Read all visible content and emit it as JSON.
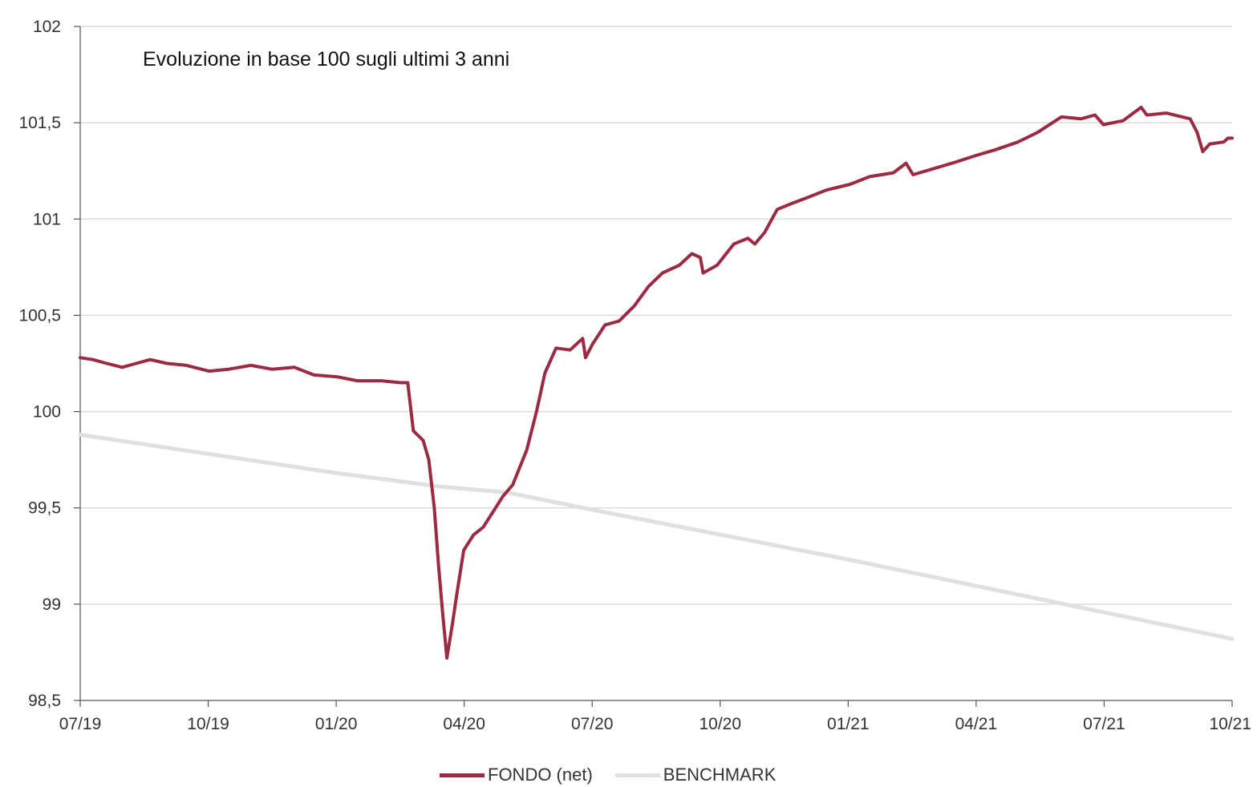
{
  "chart_data": {
    "type": "line",
    "title": "Evoluzione in base 100 sugli ultimi 3 anni",
    "xlabel": "",
    "ylabel": "",
    "x_ticks": [
      "07/19",
      "10/19",
      "01/20",
      "04/20",
      "07/20",
      "10/20",
      "01/21",
      "04/21",
      "07/21",
      "10/21"
    ],
    "y_ticks": [
      "98,5",
      "99",
      "99,5",
      "100",
      "100,5",
      "101",
      "101,5",
      "102"
    ],
    "ylim": [
      98.5,
      102
    ],
    "xlim": [
      "2019-07-01",
      "2021-10-01"
    ],
    "grid": "horizontal",
    "legend_position": "bottom",
    "series": [
      {
        "name": "FONDO (net)",
        "color": "#9b2a43",
        "points": [
          [
            "2019-07-01",
            100.28
          ],
          [
            "2019-07-10",
            100.27
          ],
          [
            "2019-07-20",
            100.25
          ],
          [
            "2019-07-31",
            100.23
          ],
          [
            "2019-08-10",
            100.25
          ],
          [
            "2019-08-20",
            100.27
          ],
          [
            "2019-09-01",
            100.25
          ],
          [
            "2019-09-15",
            100.24
          ],
          [
            "2019-10-01",
            100.21
          ],
          [
            "2019-10-15",
            100.22
          ],
          [
            "2019-10-31",
            100.24
          ],
          [
            "2019-11-15",
            100.22
          ],
          [
            "2019-12-01",
            100.23
          ],
          [
            "2019-12-15",
            100.19
          ],
          [
            "2020-01-01",
            100.18
          ],
          [
            "2020-01-15",
            100.16
          ],
          [
            "2020-02-01",
            100.16
          ],
          [
            "2020-02-15",
            100.15
          ],
          [
            "2020-02-20",
            100.15
          ],
          [
            "2020-02-24",
            99.9
          ],
          [
            "2020-03-02",
            99.85
          ],
          [
            "2020-03-06",
            99.75
          ],
          [
            "2020-03-10",
            99.5
          ],
          [
            "2020-03-13",
            99.2
          ],
          [
            "2020-03-16",
            98.95
          ],
          [
            "2020-03-19",
            98.72
          ],
          [
            "2020-03-23",
            98.9
          ],
          [
            "2020-03-26",
            99.05
          ],
          [
            "2020-03-31",
            99.28
          ],
          [
            "2020-04-07",
            99.36
          ],
          [
            "2020-04-14",
            99.4
          ],
          [
            "2020-04-21",
            99.48
          ],
          [
            "2020-04-28",
            99.56
          ],
          [
            "2020-05-05",
            99.62
          ],
          [
            "2020-05-15",
            99.8
          ],
          [
            "2020-05-22",
            100.0
          ],
          [
            "2020-05-28",
            100.2
          ],
          [
            "2020-06-05",
            100.33
          ],
          [
            "2020-06-15",
            100.32
          ],
          [
            "2020-06-24",
            100.38
          ],
          [
            "2020-06-26",
            100.28
          ],
          [
            "2020-07-01",
            100.35
          ],
          [
            "2020-07-10",
            100.45
          ],
          [
            "2020-07-20",
            100.47
          ],
          [
            "2020-07-31",
            100.55
          ],
          [
            "2020-08-10",
            100.65
          ],
          [
            "2020-08-20",
            100.72
          ],
          [
            "2020-09-01",
            100.76
          ],
          [
            "2020-09-10",
            100.82
          ],
          [
            "2020-09-16",
            100.8
          ],
          [
            "2020-09-18",
            100.72
          ],
          [
            "2020-09-28",
            100.76
          ],
          [
            "2020-10-10",
            100.87
          ],
          [
            "2020-10-20",
            100.9
          ],
          [
            "2020-10-25",
            100.87
          ],
          [
            "2020-11-01",
            100.93
          ],
          [
            "2020-11-10",
            101.05
          ],
          [
            "2020-11-20",
            101.08
          ],
          [
            "2020-12-01",
            101.11
          ],
          [
            "2020-12-15",
            101.15
          ],
          [
            "2021-01-01",
            101.18
          ],
          [
            "2021-01-15",
            101.22
          ],
          [
            "2021-02-01",
            101.24
          ],
          [
            "2021-02-10",
            101.29
          ],
          [
            "2021-02-15",
            101.23
          ],
          [
            "2021-03-01",
            101.26
          ],
          [
            "2021-03-15",
            101.29
          ],
          [
            "2021-04-01",
            101.33
          ],
          [
            "2021-04-15",
            101.36
          ],
          [
            "2021-05-01",
            101.4
          ],
          [
            "2021-05-15",
            101.45
          ],
          [
            "2021-06-01",
            101.53
          ],
          [
            "2021-06-15",
            101.52
          ],
          [
            "2021-06-25",
            101.54
          ],
          [
            "2021-07-01",
            101.49
          ],
          [
            "2021-07-15",
            101.51
          ],
          [
            "2021-07-28",
            101.58
          ],
          [
            "2021-08-01",
            101.54
          ],
          [
            "2021-08-15",
            101.55
          ],
          [
            "2021-09-01",
            101.52
          ],
          [
            "2021-09-06",
            101.45
          ],
          [
            "2021-09-10",
            101.35
          ],
          [
            "2021-09-15",
            101.39
          ],
          [
            "2021-09-25",
            101.4
          ],
          [
            "2021-09-28",
            101.42
          ],
          [
            "2021-10-01",
            101.42
          ]
        ]
      },
      {
        "name": "BENCHMARK",
        "color": "#e0e0e0",
        "points": [
          [
            "2019-07-01",
            99.88
          ],
          [
            "2020-01-01",
            99.68
          ],
          [
            "2020-03-15",
            99.61
          ],
          [
            "2020-05-01",
            99.58
          ],
          [
            "2020-07-01",
            99.49
          ],
          [
            "2021-01-01",
            99.23
          ],
          [
            "2021-10-01",
            98.82
          ]
        ]
      }
    ]
  }
}
